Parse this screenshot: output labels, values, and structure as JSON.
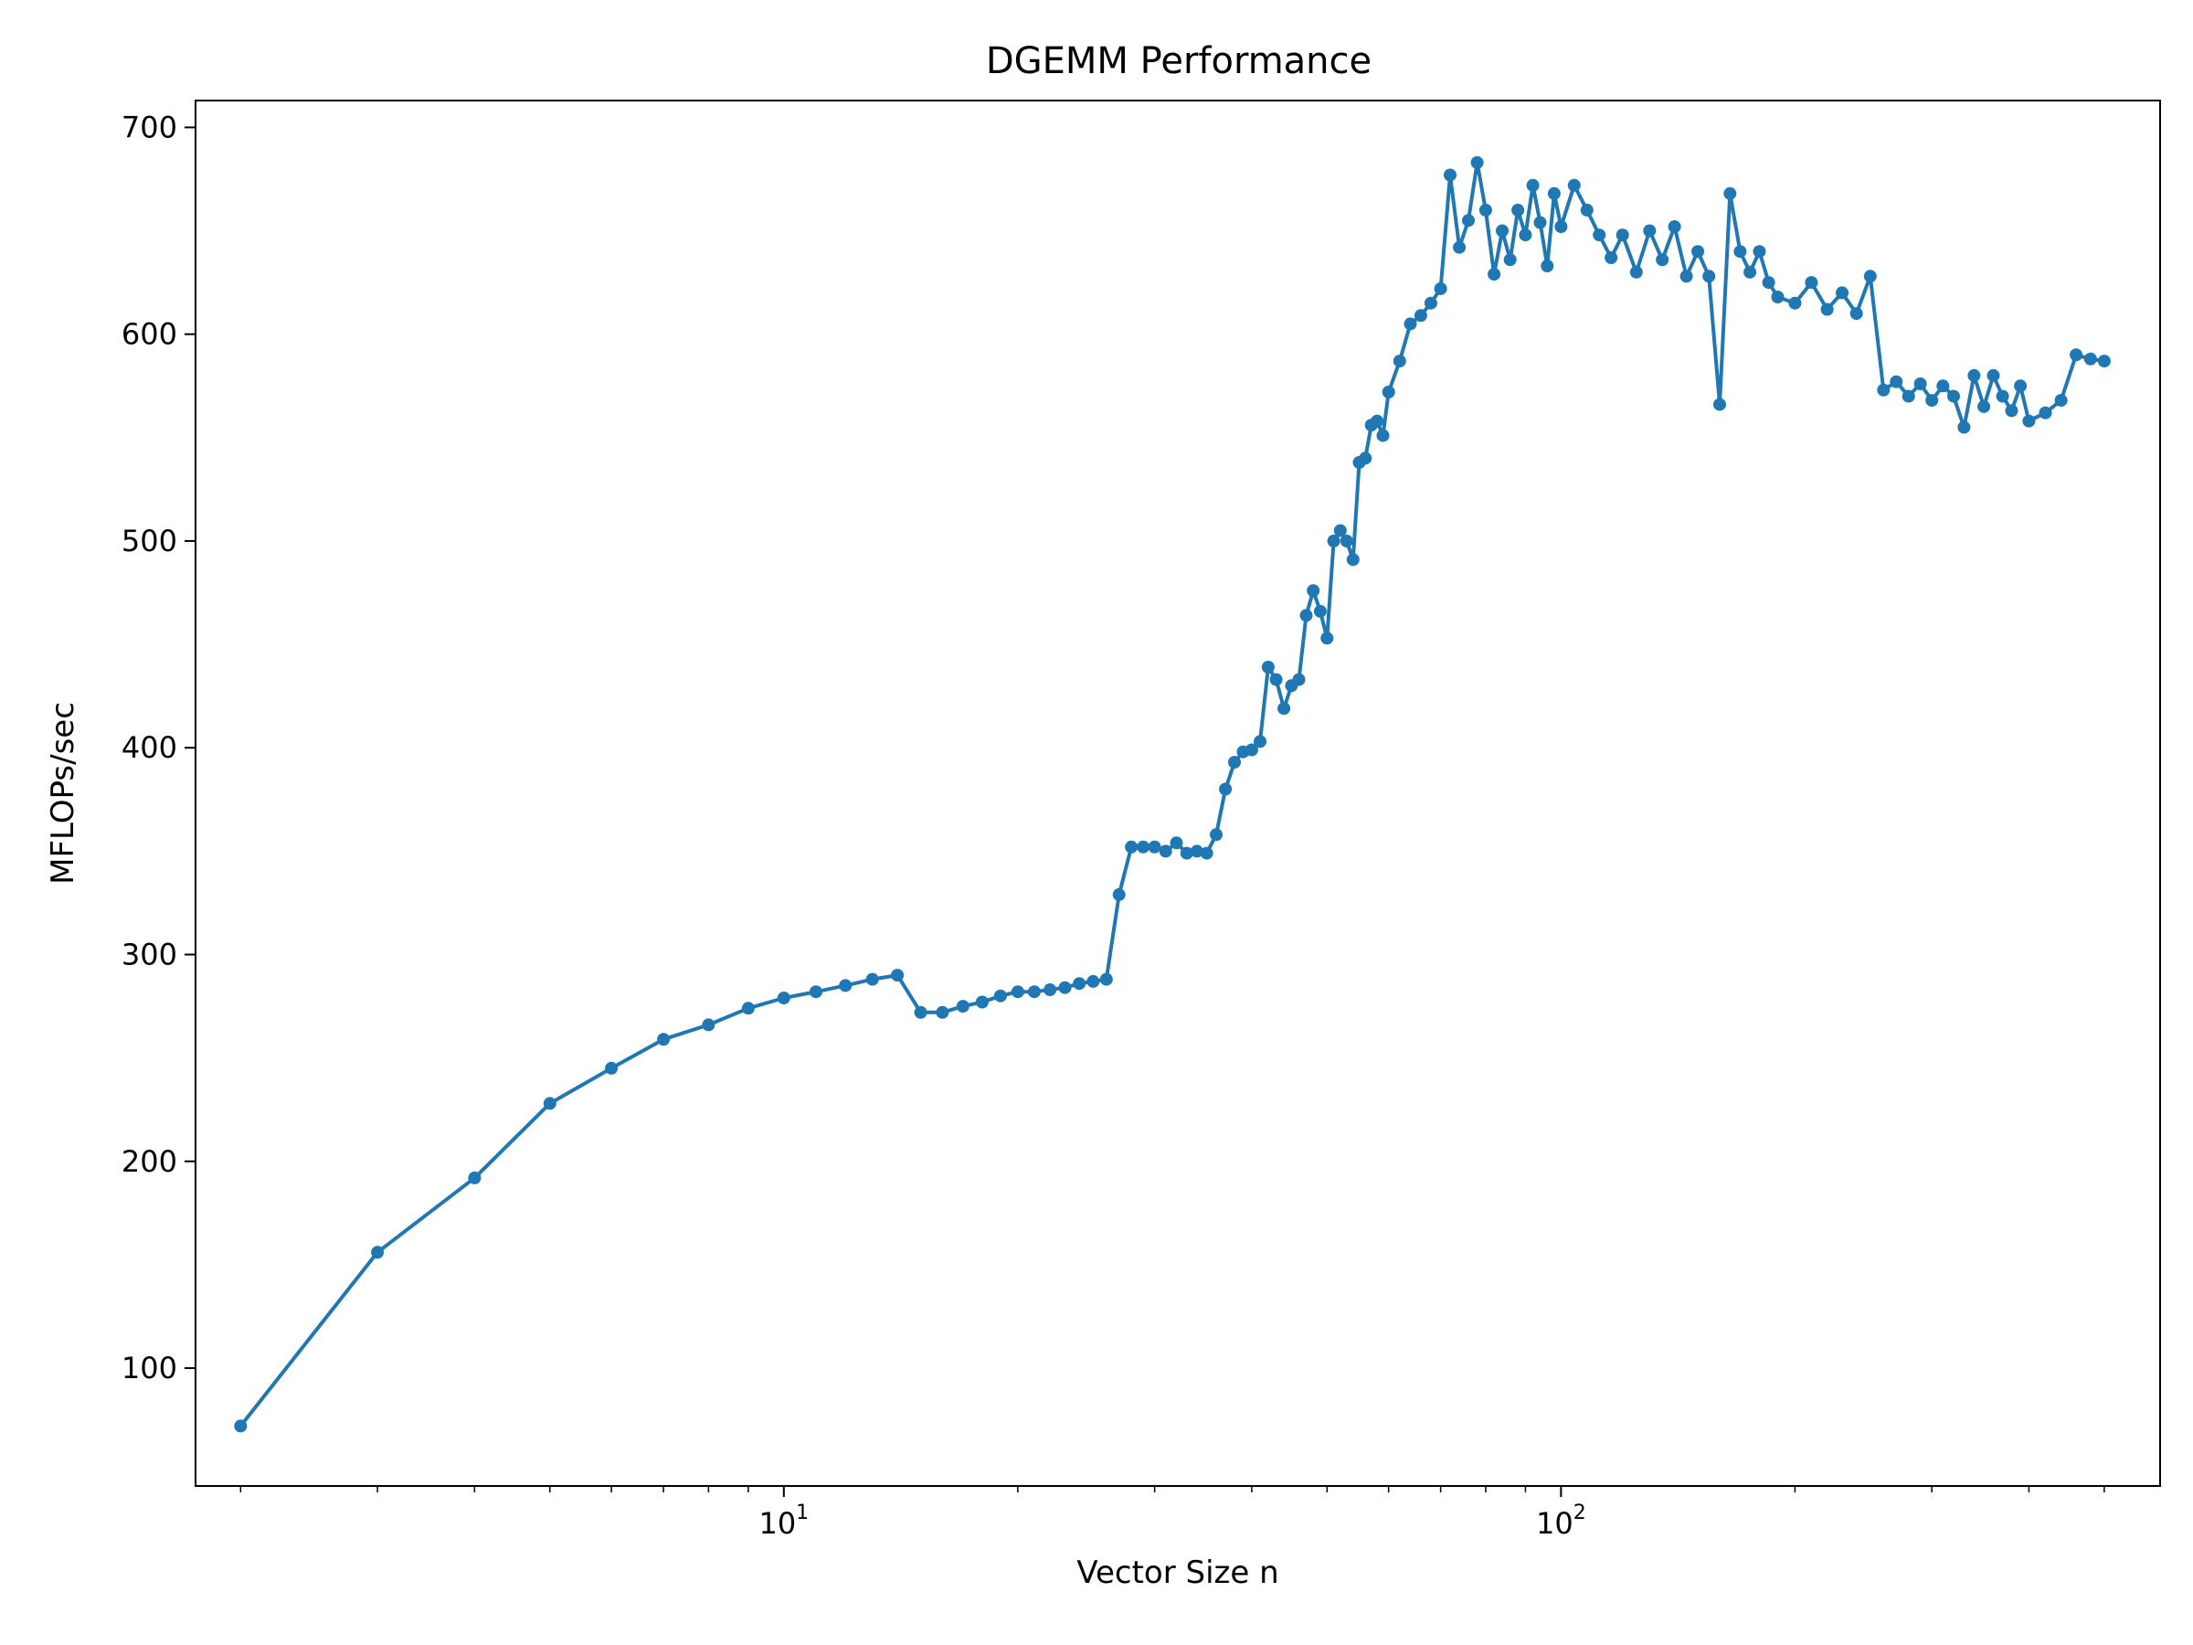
{
  "chart_data": {
    "type": "line",
    "title": "DGEMM Performance",
    "xlabel": "Vector Size n",
    "ylabel": "MFLOPs/sec",
    "xscale": "log",
    "xlim": [
      1.75,
      590
    ],
    "ylim": [
      43,
      713
    ],
    "x_major_ticks": [
      {
        "value": 10,
        "base": "10",
        "exp": "1"
      },
      {
        "value": 100,
        "base": "10",
        "exp": "2"
      }
    ],
    "y_ticks": [
      100,
      200,
      300,
      400,
      500,
      600,
      700
    ],
    "grid": false,
    "legend": "none",
    "series_color": "#1f77b4",
    "marker": "circle",
    "series": [
      {
        "x": [
          2,
          3,
          4,
          5,
          6,
          7,
          8,
          9,
          10,
          11,
          12,
          13,
          14,
          15,
          16,
          17,
          18,
          19,
          20,
          21,
          22,
          23,
          24,
          25,
          26,
          27,
          28,
          29,
          30,
          31,
          32,
          33,
          34,
          35,
          36,
          37,
          38,
          39,
          40,
          41,
          42,
          43,
          44,
          45,
          46,
          47,
          48,
          49,
          50,
          51,
          52,
          53,
          54,
          55,
          56,
          57,
          58,
          59,
          60,
          62,
          64,
          66,
          68,
          70,
          72,
          74,
          76,
          78,
          80,
          82,
          84,
          86,
          88,
          90,
          92,
          94,
          96,
          98,
          100,
          104,
          108,
          112,
          116,
          120,
          125,
          130,
          135,
          140,
          145,
          150,
          155,
          160,
          165,
          170,
          175,
          180,
          185,
          190,
          200,
          210,
          220,
          230,
          240,
          250,
          260,
          270,
          280,
          290,
          300,
          310,
          320,
          330,
          340,
          350,
          360,
          370,
          380,
          390,
          400,
          420,
          440,
          460,
          480,
          500
        ],
        "y": [
          72,
          156,
          192,
          228,
          245,
          259,
          266,
          274,
          279,
          282,
          285,
          288,
          290,
          272,
          272,
          275,
          277,
          280,
          282,
          282,
          283,
          284,
          286,
          287,
          288,
          329,
          352,
          352,
          352,
          350,
          354,
          349,
          350,
          349,
          358,
          380,
          393,
          398,
          399,
          403,
          439,
          433,
          419,
          430,
          433,
          464,
          476,
          466,
          453,
          500,
          505,
          500,
          491,
          538,
          540,
          556,
          558,
          551,
          572,
          587,
          605,
          609,
          615,
          622,
          677,
          642,
          655,
          683,
          660,
          629,
          650,
          636,
          660,
          648,
          672,
          654,
          633,
          668,
          652,
          672,
          660,
          648,
          637,
          648,
          630,
          650,
          636,
          652,
          628,
          640,
          628,
          566,
          668,
          640,
          630,
          640,
          625,
          618,
          615,
          625,
          612,
          620,
          610,
          628,
          573,
          577,
          570,
          576,
          568,
          575,
          570,
          555,
          580,
          565,
          580,
          570,
          563,
          575,
          558,
          562,
          568,
          590,
          588,
          587
        ]
      }
    ]
  }
}
